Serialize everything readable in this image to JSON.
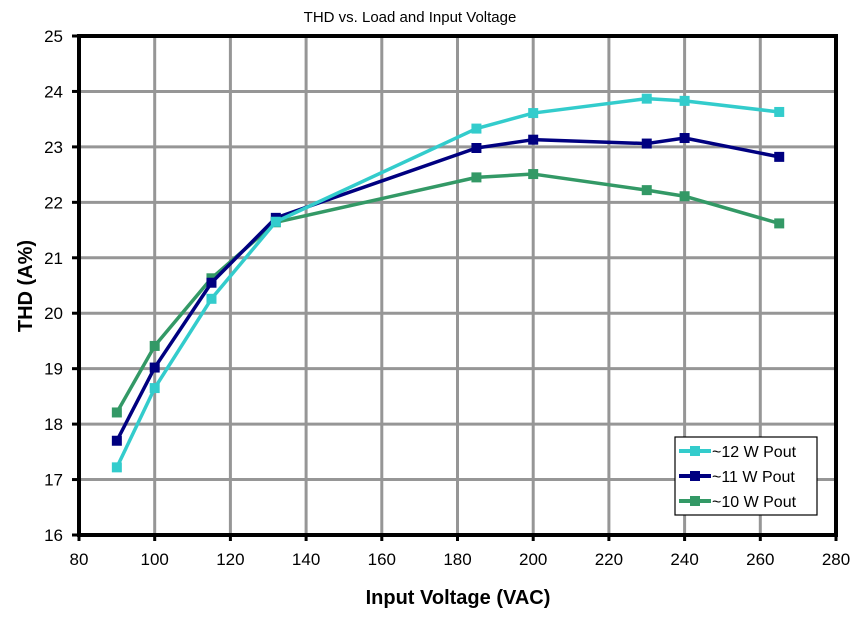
{
  "chart_data": {
    "type": "line",
    "title": "THD vs. Load and Input Voltage",
    "xlabel": "Input Voltage (VAC)",
    "ylabel": "THD (A%)",
    "xlim": [
      80,
      280
    ],
    "ylim": [
      16,
      25
    ],
    "xticks": [
      80,
      100,
      120,
      140,
      160,
      180,
      200,
      220,
      240,
      260,
      280
    ],
    "yticks": [
      16,
      17,
      18,
      19,
      20,
      21,
      22,
      23,
      24,
      25
    ],
    "grid": true,
    "legend_position": "bottom-right",
    "x": [
      90,
      100,
      115,
      132,
      185,
      200,
      230,
      240,
      265
    ],
    "series": [
      {
        "name": "~12 W Pout",
        "color": "#33CCCC",
        "marker": "square",
        "values": [
          17.22,
          18.65,
          20.26,
          21.65,
          23.33,
          23.61,
          23.87,
          23.83,
          23.63
        ]
      },
      {
        "name": "~11 W Pout",
        "color": "#000080",
        "marker": "square",
        "values": [
          17.7,
          19.02,
          20.55,
          21.72,
          22.98,
          23.13,
          23.06,
          23.16,
          22.82
        ]
      },
      {
        "name": "~10 W Pout",
        "color": "#339966",
        "marker": "square",
        "values": [
          18.21,
          19.41,
          20.63,
          21.64,
          22.45,
          22.51,
          22.22,
          22.11,
          21.62
        ]
      }
    ]
  }
}
